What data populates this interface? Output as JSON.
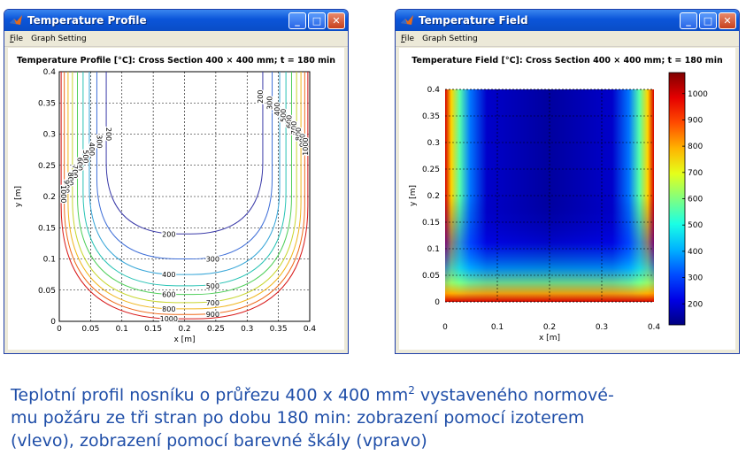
{
  "left_window": {
    "title": "Temperature Profile",
    "menu": [
      {
        "mnemonic": "F",
        "rest": "ile"
      },
      {
        "mnemonic": "",
        "rest": "Graph Setting"
      }
    ],
    "plot_title": "Temperature Profile [°C]: Cross Section 400 × 400 mm; t = 180 min",
    "xlabel": "x [m]",
    "ylabel": "y [m]"
  },
  "right_window": {
    "title": "Temperature Field",
    "menu": [
      {
        "mnemonic": "F",
        "rest": "ile"
      },
      {
        "mnemonic": "",
        "rest": "Graph Setting"
      }
    ],
    "plot_title": "Temperature Field [°C]: Cross Section 400 × 400 mm; t = 180 min",
    "xlabel": "x [m]",
    "ylabel": "y [m]"
  },
  "window_buttons": {
    "minimize": "_",
    "maximize": "□",
    "close": "✕"
  },
  "caption": {
    "part1": "Teplotní profil nosníku o průřezu 400 x 400 mm",
    "sup": "2",
    "part2": " vystaveného normové-",
    "line2": "mu požáru ze tři stran po dobu 180 min: zobrazení pomocí izoterem",
    "line3": "(vlevo), zobrazení pomocí barevné škály (vpravo)"
  },
  "chart_data": [
    {
      "type": "contour",
      "title": "Temperature Profile [°C]: Cross Section 400 × 400 mm; t = 180 min",
      "xlabel": "x [m]",
      "ylabel": "y [m]",
      "xlim": [
        0,
        0.4
      ],
      "ylim": [
        0,
        0.4
      ],
      "xticks": [
        "0",
        "0.05",
        "0.1",
        "0.15",
        "0.2",
        "0.25",
        "0.3",
        "0.35",
        "0.4"
      ],
      "yticks": [
        "0",
        "0.05",
        "0.1",
        "0.15",
        "0.2",
        "0.25",
        "0.3",
        "0.35",
        "0.4"
      ],
      "grid": true,
      "levels": [
        {
          "value": 200,
          "label": "200",
          "color": "#3a3aa8",
          "offset": 0.075,
          "bottom": 0.14
        },
        {
          "value": 300,
          "label": "300",
          "color": "#3f6fd8",
          "offset": 0.06,
          "bottom": 0.1
        },
        {
          "value": 400,
          "label": "400",
          "color": "#37a6d8",
          "offset": 0.048,
          "bottom": 0.075
        },
        {
          "value": 500,
          "label": "500",
          "color": "#29c3b5",
          "offset": 0.038,
          "bottom": 0.057
        },
        {
          "value": 600,
          "label": "600",
          "color": "#4fcf5a",
          "offset": 0.029,
          "bottom": 0.043
        },
        {
          "value": 700,
          "label": "700",
          "color": "#c8d630",
          "offset": 0.021,
          "bottom": 0.03
        },
        {
          "value": 800,
          "label": "800",
          "color": "#f0b61d",
          "offset": 0.014,
          "bottom": 0.02
        },
        {
          "value": 900,
          "label": "900",
          "color": "#ef6a1a",
          "offset": 0.008,
          "bottom": 0.011
        },
        {
          "value": 1000,
          "label": "1000",
          "color": "#d81818",
          "offset": 0.003,
          "bottom": 0.004
        }
      ]
    },
    {
      "type": "heatmap",
      "title": "Temperature Field [°C]: Cross Section 400 × 400 mm; t = 180 min",
      "xlabel": "x [m]",
      "ylabel": "y [m]",
      "xlim": [
        0,
        0.4
      ],
      "ylim": [
        0,
        0.4
      ],
      "xticks": [
        "0",
        "0.1",
        "0.2",
        "0.3",
        "0.4"
      ],
      "yticks": [
        "0",
        "0.05",
        "0.1",
        "0.15",
        "0.2",
        "0.25",
        "0.3",
        "0.35",
        "0.4"
      ],
      "colorbar_ticks": [
        "200",
        "300",
        "400",
        "500",
        "600",
        "700",
        "800",
        "900",
        "1000"
      ],
      "colorbar_range": [
        120,
        1080
      ],
      "colormap": "jet",
      "grid": true
    }
  ]
}
